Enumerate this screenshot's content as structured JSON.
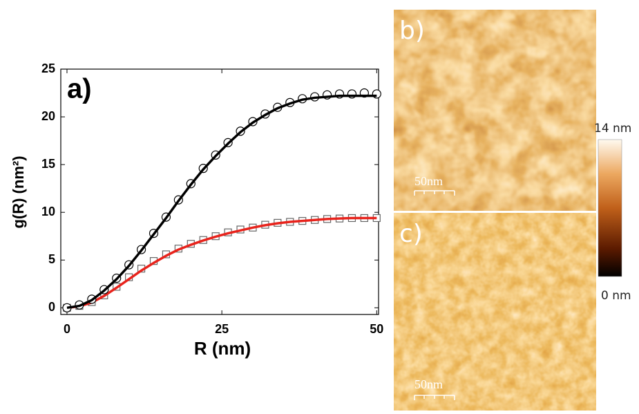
{
  "chart_data": {
    "type": "scatter",
    "panel_label": "a)",
    "x_label": "R (nm)",
    "y_label": "g(R)  (nm²)",
    "x": [
      0,
      2,
      4,
      6,
      8,
      10,
      12,
      14,
      16,
      18,
      20,
      22,
      24,
      26,
      28,
      30,
      32,
      34,
      36,
      38,
      40,
      42,
      44,
      46,
      48,
      50
    ],
    "series": [
      {
        "style": "markers",
        "marker": "circle",
        "color": "#000000",
        "values": [
          0,
          0.3,
          0.9,
          1.9,
          3.1,
          4.5,
          6.1,
          7.8,
          9.5,
          11.3,
          13.0,
          14.6,
          16.0,
          17.3,
          18.5,
          19.5,
          20.3,
          21.0,
          21.5,
          21.9,
          22.1,
          22.3,
          22.4,
          22.4,
          22.5,
          22.4
        ]
      },
      {
        "style": "line",
        "color": "#000000",
        "values": [
          0,
          0.2,
          0.8,
          1.8,
          3.0,
          4.4,
          6.0,
          7.7,
          9.4,
          11.2,
          12.9,
          14.5,
          15.9,
          17.2,
          18.4,
          19.4,
          20.2,
          20.9,
          21.4,
          21.8,
          22.0,
          22.1,
          22.2,
          22.2,
          22.2,
          22.2
        ]
      },
      {
        "style": "markers",
        "marker": "square",
        "color": "#666666",
        "values": [
          0,
          0.2,
          0.6,
          1.3,
          2.2,
          3.2,
          4.1,
          4.9,
          5.6,
          6.2,
          6.7,
          7.1,
          7.5,
          7.9,
          8.2,
          8.4,
          8.7,
          8.9,
          9.0,
          9.1,
          9.2,
          9.3,
          9.35,
          9.4,
          9.4,
          9.4
        ]
      },
      {
        "style": "line",
        "color": "#e8231c",
        "values": [
          0,
          0.15,
          0.55,
          1.25,
          2.1,
          3.0,
          3.9,
          4.7,
          5.45,
          6.1,
          6.6,
          7.05,
          7.45,
          7.8,
          8.1,
          8.4,
          8.65,
          8.85,
          9.0,
          9.1,
          9.2,
          9.3,
          9.35,
          9.4,
          9.4,
          9.4
        ]
      }
    ],
    "xlim": [
      -1,
      50.3
    ],
    "ylim": [
      -0.7,
      25
    ],
    "xticks": [
      0,
      25,
      50
    ],
    "yticks": [
      0,
      5,
      10,
      15,
      20,
      25
    ]
  },
  "images": [
    {
      "label": "b)",
      "scale_bar": "50nm"
    },
    {
      "label": "c)",
      "scale_bar": "50nm"
    }
  ],
  "colorbar": {
    "max_label": "14 nm",
    "min_label": "0 nm"
  }
}
